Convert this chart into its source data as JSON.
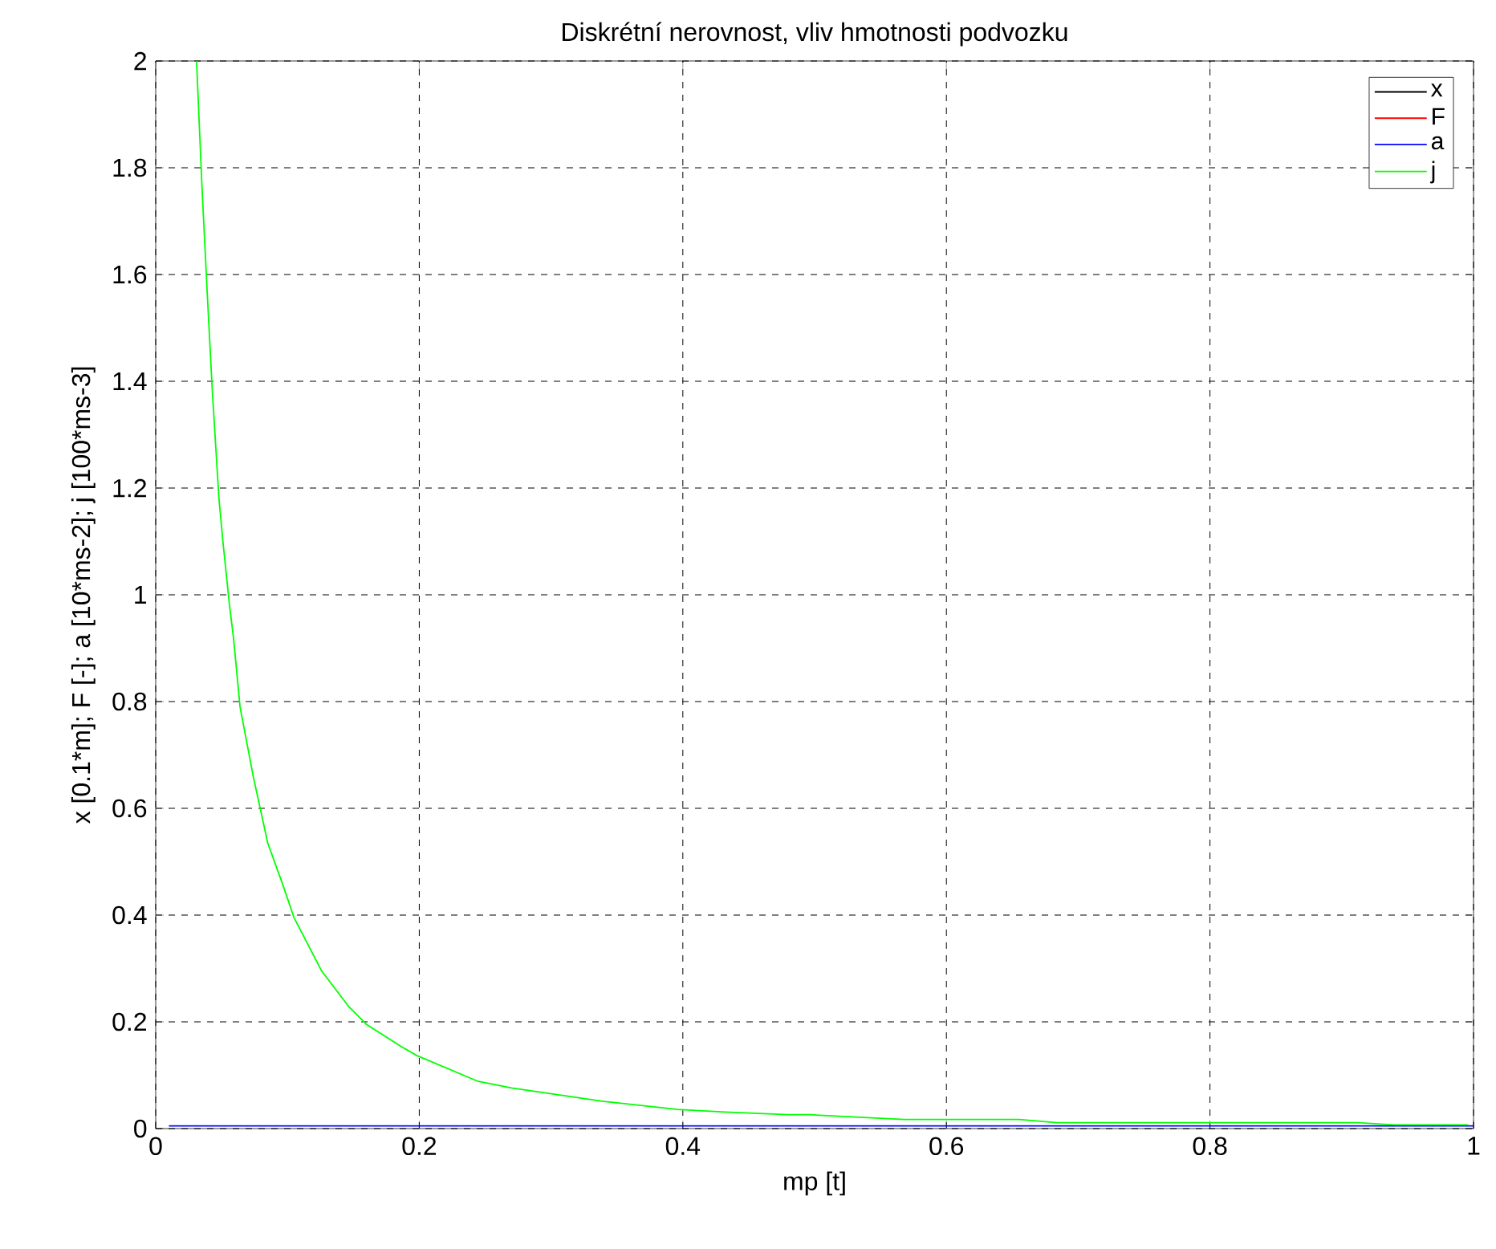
{
  "chart_data": {
    "type": "line",
    "title": "Diskrétní nerovnost, vliv hmotnosti podvozku",
    "xlabel": "mp [t]",
    "ylabel": "x [0.1*m]; F [-]; a [10*ms-2]; j [100*ms-3]",
    "xlim": [
      0,
      1
    ],
    "ylim": [
      0,
      2
    ],
    "xticks": [
      0,
      0.2,
      0.4,
      0.6,
      0.8,
      1
    ],
    "yticks": [
      0,
      0.2,
      0.4,
      0.6,
      0.8,
      1,
      1.2,
      1.4,
      1.6,
      1.8,
      2
    ],
    "grid": true,
    "legend": "top right",
    "line_style": "solid",
    "marker": "none",
    "series": [
      {
        "name": "x",
        "color": "#000000",
        "values": [
          null,
          null
        ]
      },
      {
        "name": "F",
        "color": "#ff0000",
        "values": [
          null,
          null
        ]
      },
      {
        "name": "a",
        "color": "#0000ff",
        "x": [
          0.01,
          1
        ],
        "values": [
          0.005,
          0.005
        ]
      },
      {
        "name": "j",
        "color": "#00ff00",
        "x": [
          0.031,
          0.035,
          0.039,
          0.043,
          0.048,
          0.051,
          0.056,
          0.059,
          0.064,
          0.074,
          0.085,
          0.096,
          0.105,
          0.126,
          0.146,
          0.16,
          0.186,
          0.198,
          0.244,
          0.27,
          0.34,
          0.396,
          0.432,
          0.48,
          0.496,
          0.568,
          0.655,
          0.684,
          0.912,
          0.94,
          0.996
        ],
        "values": [
          2.0,
          1.77,
          1.57,
          1.38,
          1.18,
          1.1,
          0.98,
          0.92,
          0.79,
          0.66,
          0.535,
          0.46,
          0.395,
          0.295,
          0.23,
          0.195,
          0.154,
          0.137,
          0.089,
          0.076,
          0.051,
          0.036,
          0.031,
          0.026,
          0.026,
          0.017,
          0.017,
          0.011,
          0.011,
          0.007,
          0.007
        ]
      }
    ]
  }
}
